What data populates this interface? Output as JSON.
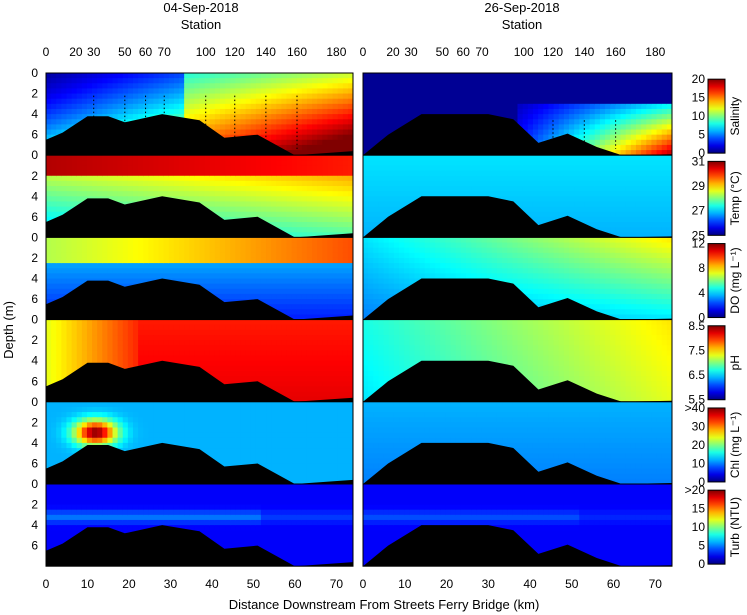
{
  "chart_data": {
    "type": "heatmap",
    "columns": [
      {
        "date": "04-Sep-2018",
        "station_label": "Station"
      },
      {
        "date": "26-Sep-2018",
        "station_label": "Station"
      }
    ],
    "station_ticks": [
      "0",
      "20",
      "30",
      "50",
      "60",
      "70",
      "100",
      "120",
      "140",
      "160",
      "180"
    ],
    "station_ticks_km": [
      0,
      7.2,
      11.5,
      19.0,
      24.0,
      28.5,
      38.5,
      45.5,
      53.0,
      60.5,
      70.0
    ],
    "xlabel": "Distance Downstream From Streets Ferry Bridge (km)",
    "ylabel": "Depth (m)",
    "xlim": [
      0,
      74
    ],
    "xticks": [
      "0",
      "10",
      "20",
      "30",
      "40",
      "50",
      "60",
      "70"
    ],
    "ylim": [
      0,
      8
    ],
    "yticks_first": [
      "0",
      "2",
      "4",
      "6"
    ],
    "yticks_other": [
      "0",
      "2",
      "4",
      "6"
    ],
    "bathymetry": {
      "x": [
        0,
        4,
        10,
        15,
        19,
        28,
        37,
        43,
        51,
        60,
        74
      ],
      "depth": [
        6.5,
        5.8,
        4.2,
        4.2,
        4.8,
        4.0,
        4.6,
        6.3,
        6.0,
        8.0,
        7.6
      ]
    },
    "bathymetry_b": {
      "x": [
        0,
        6,
        14,
        20,
        30,
        36,
        42,
        49,
        56,
        62,
        74
      ],
      "depth": [
        8.0,
        6.0,
        4.0,
        4.0,
        4.0,
        4.5,
        6.8,
        5.9,
        7.2,
        8.0,
        7.9
      ]
    },
    "panels": [
      {
        "variable": "Salinity",
        "colorbar_label": "Salinity",
        "ticks": [
          "20",
          "15",
          "10",
          "5",
          "0"
        ],
        "sep04": {
          "surface": 0.05,
          "bottom": 0.35,
          "downstream_surface": 0.55,
          "downstream_bottom": 0.95
        },
        "sep26": {
          "surface": 0.0,
          "bottom": 0.05,
          "downstream_surface": 0.1,
          "downstream_bottom": 0.75
        }
      },
      {
        "variable": "Temperature",
        "colorbar_label": "Temp (°C)",
        "ticks": [
          "31",
          "29",
          "27",
          "25"
        ],
        "sep04": {
          "surface": 0.95,
          "bottom": 0.4,
          "downstream_surface": 0.85,
          "downstream_bottom": 0.35
        },
        "sep26": {
          "surface": 0.35,
          "bottom": 0.3,
          "downstream_surface": 0.35,
          "downstream_bottom": 0.3
        }
      },
      {
        "variable": "Dissolved Oxygen",
        "colorbar_label": "DO (mg L⁻¹)",
        "ticks": [
          "12",
          "8",
          "4",
          "0"
        ],
        "sep04": {
          "surface": 0.6,
          "bottom": 0.3,
          "downstream_surface": 0.75,
          "downstream_bottom": 0.1
        },
        "sep26": {
          "surface": 0.35,
          "bottom": 0.25,
          "downstream_surface": 0.65,
          "downstream_bottom": 0.35
        }
      },
      {
        "variable": "pH",
        "colorbar_label": "pH",
        "ticks": [
          "8.5",
          "7.5",
          "6.5",
          "5.5"
        ],
        "sep04": {
          "surface": 0.65,
          "bottom": 0.5,
          "downstream_surface": 0.9,
          "downstream_bottom": 0.8
        },
        "sep26": {
          "surface": 0.4,
          "bottom": 0.35,
          "downstream_surface": 0.65,
          "downstream_bottom": 0.6
        }
      },
      {
        "variable": "Chlorophyll",
        "colorbar_label": "Chl (mg L⁻¹)",
        "ticks": [
          ">40",
          "30",
          "20",
          "10",
          "0"
        ],
        "sep04": {
          "surface": 0.3,
          "bottom": 0.25,
          "downstream_surface": 0.35,
          "downstream_bottom": 0.2
        },
        "sep26": {
          "surface": 0.3,
          "bottom": 0.25,
          "downstream_surface": 0.3,
          "downstream_bottom": 0.25
        }
      },
      {
        "variable": "Turbidity",
        "colorbar_label": "Turb (NTU)",
        "ticks": [
          ">20",
          "15",
          "10",
          "5",
          "0"
        ],
        "sep04": {
          "surface": 0.1,
          "bottom": 0.15,
          "downstream_surface": 0.1,
          "downstream_bottom": 0.2
        },
        "sep26": {
          "surface": 0.1,
          "bottom": 0.15,
          "downstream_surface": 0.1,
          "downstream_bottom": 0.2
        }
      }
    ],
    "colormap": "jet"
  }
}
